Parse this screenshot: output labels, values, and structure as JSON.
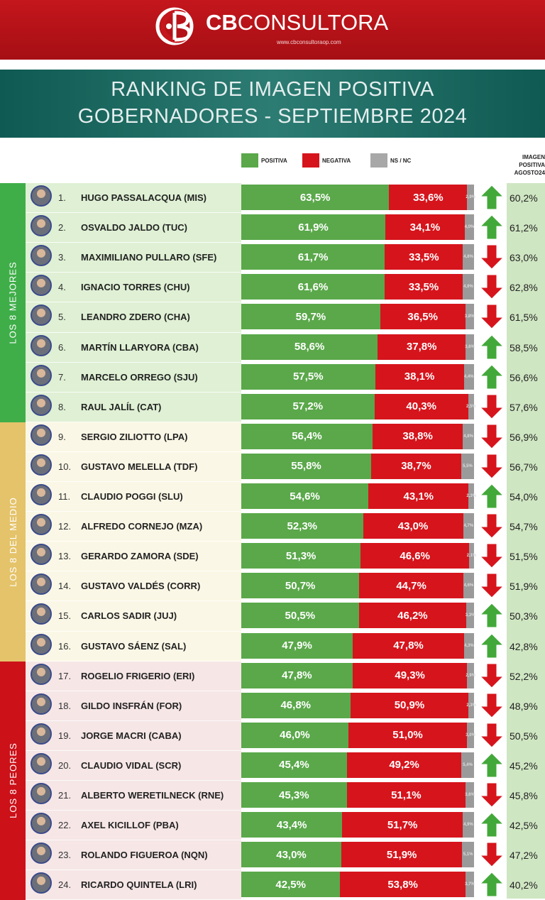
{
  "header": {
    "brand_bold": "CB",
    "brand_rest": "CONSULTORA",
    "url": "www.cbconsultoraop.com"
  },
  "title": {
    "line1": "RANKING DE IMAGEN POSITIVA",
    "line2": "GOBERNADORES - SEPTIEMBRE 2024"
  },
  "colors": {
    "positive": "#5aa84a",
    "negative": "#d6141c",
    "nsnc": "#9a9a9a",
    "up": "#43a83a",
    "down": "#d6141c"
  },
  "legend": {
    "positive": "POSITIVA",
    "negative": "NEGATIVA",
    "nsnc": "NS / NC"
  },
  "previous_header": {
    "l1": "IMAGEN",
    "l2": "POSITIVA",
    "l3": "AGOSTO24"
  },
  "groups": [
    {
      "label": "LOS 8 MEJORES",
      "color": "#3fae49",
      "row_bg": "#dff0d4"
    },
    {
      "label": "LOS 8 DEL MEDIO",
      "color": "#e4c36a",
      "row_bg": "#fbf7e6"
    },
    {
      "label": "LOS 8 PEORES",
      "color": "#cc1119",
      "row_bg": "#f6e6e6"
    }
  ],
  "chart_data": {
    "type": "bar",
    "stacked": true,
    "orientation": "horizontal",
    "title": "RANKING DE IMAGEN POSITIVA GOBERNADORES - SEPTIEMBRE 2024",
    "rows": [
      {
        "rank": "1.",
        "name": "HUGO PASSALACQUA (MIS)",
        "pos": 63.5,
        "pos_label": "63,5%",
        "neg": 33.6,
        "neg_label": "33,6%",
        "ns_label": "2,9%",
        "trend": "up",
        "prev": "60,2%"
      },
      {
        "rank": "2.",
        "name": "OSVALDO JALDO (TUC)",
        "pos": 61.9,
        "pos_label": "61,9%",
        "neg": 34.1,
        "neg_label": "34,1%",
        "ns_label": "4,0%",
        "trend": "up",
        "prev": "61,2%"
      },
      {
        "rank": "3.",
        "name": "MAXIMILIANO PULLARO (SFE)",
        "pos": 61.7,
        "pos_label": "61,7%",
        "neg": 33.5,
        "neg_label": "33,5%",
        "ns_label": "4,8%",
        "trend": "down",
        "prev": "63,0%"
      },
      {
        "rank": "4.",
        "name": "IGNACIO TORRES (CHU)",
        "pos": 61.6,
        "pos_label": "61,6%",
        "neg": 33.5,
        "neg_label": "33,5%",
        "ns_label": "4,9%",
        "trend": "down",
        "prev": "62,8%"
      },
      {
        "rank": "5.",
        "name": "LEANDRO ZDERO (CHA)",
        "pos": 59.7,
        "pos_label": "59,7%",
        "neg": 36.5,
        "neg_label": "36,5%",
        "ns_label": "3,8%",
        "trend": "down",
        "prev": "61,5%"
      },
      {
        "rank": "6.",
        "name": "MARTÍN LLARYORA (CBA)",
        "pos": 58.6,
        "pos_label": "58,6%",
        "neg": 37.8,
        "neg_label": "37,8%",
        "ns_label": "3,6%",
        "trend": "up",
        "prev": "58,5%"
      },
      {
        "rank": "7.",
        "name": "MARCELO ORREGO (SJU)",
        "pos": 57.5,
        "pos_label": "57,5%",
        "neg": 38.1,
        "neg_label": "38,1%",
        "ns_label": "4,4%",
        "trend": "up",
        "prev": "56,6%"
      },
      {
        "rank": "8.",
        "name": "RAUL JALÍL (CAT)",
        "pos": 57.2,
        "pos_label": "57,2%",
        "neg": 40.3,
        "neg_label": "40,3%",
        "ns_label": "2,5%",
        "trend": "down",
        "prev": "57,6%"
      },
      {
        "rank": "9.",
        "name": "SERGIO ZILIOTTO (LPA)",
        "pos": 56.4,
        "pos_label": "56,4%",
        "neg": 38.8,
        "neg_label": "38,8%",
        "ns_label": "4,8%",
        "trend": "down",
        "prev": "56,9%"
      },
      {
        "rank": "10.",
        "name": "GUSTAVO MELELLA (TDF)",
        "pos": 55.8,
        "pos_label": "55,8%",
        "neg": 38.7,
        "neg_label": "38,7%",
        "ns_label": "5,5%",
        "trend": "down",
        "prev": "56,7%"
      },
      {
        "rank": "11.",
        "name": "CLAUDIO POGGI (SLU)",
        "pos": 54.6,
        "pos_label": "54,6%",
        "neg": 43.1,
        "neg_label": "43,1%",
        "ns_label": "2,3%",
        "trend": "up",
        "prev": "54,0%"
      },
      {
        "rank": "12.",
        "name": "ALFREDO CORNEJO (MZA)",
        "pos": 52.3,
        "pos_label": "52,3%",
        "neg": 43.0,
        "neg_label": "43,0%",
        "ns_label": "4,7%",
        "trend": "down",
        "prev": "54,7%"
      },
      {
        "rank": "13.",
        "name": "GERARDO ZAMORA (SDE)",
        "pos": 51.3,
        "pos_label": "51,3%",
        "neg": 46.6,
        "neg_label": "46,6%",
        "ns_label": "2,1%",
        "trend": "down",
        "prev": "51,5%"
      },
      {
        "rank": "14.",
        "name": "GUSTAVO VALDÉS (CORR)",
        "pos": 50.7,
        "pos_label": "50,7%",
        "neg": 44.7,
        "neg_label": "44,7%",
        "ns_label": "4,6%",
        "trend": "down",
        "prev": "51,9%"
      },
      {
        "rank": "15.",
        "name": "CARLOS SADIR (JUJ)",
        "pos": 50.5,
        "pos_label": "50,5%",
        "neg": 46.2,
        "neg_label": "46,2%",
        "ns_label": "3,3%",
        "trend": "up",
        "prev": "50,3%"
      },
      {
        "rank": "16.",
        "name": "GUSTAVO SÁENZ (SAL)",
        "pos": 47.9,
        "pos_label": "47,9%",
        "neg": 47.8,
        "neg_label": "47,8%",
        "ns_label": "4,3%",
        "trend": "up",
        "prev": "42,8%"
      },
      {
        "rank": "17.",
        "name": "ROGELIO FRIGERIO (ERI)",
        "pos": 47.8,
        "pos_label": "47,8%",
        "neg": 49.3,
        "neg_label": "49,3%",
        "ns_label": "2,9%",
        "trend": "down",
        "prev": "52,2%"
      },
      {
        "rank": "18.",
        "name": "GILDO INSFRÁN (FOR)",
        "pos": 46.8,
        "pos_label": "46,8%",
        "neg": 50.9,
        "neg_label": "50,9%",
        "ns_label": "2,3%",
        "trend": "down",
        "prev": "48,9%"
      },
      {
        "rank": "19.",
        "name": "JORGE MACRI (CABA)",
        "pos": 46.0,
        "pos_label": "46,0%",
        "neg": 51.0,
        "neg_label": "51,0%",
        "ns_label": "3,0%",
        "trend": "down",
        "prev": "50,5%"
      },
      {
        "rank": "20.",
        "name": "CLAUDIO VIDAL (SCR)",
        "pos": 45.4,
        "pos_label": "45,4%",
        "neg": 49.2,
        "neg_label": "49,2%",
        "ns_label": "5,4%",
        "trend": "up",
        "prev": "45,2%"
      },
      {
        "rank": "21.",
        "name": "ALBERTO WERETILNECK (RNE)",
        "pos": 45.3,
        "pos_label": "45,3%",
        "neg": 51.1,
        "neg_label": "51,1%",
        "ns_label": "3,6%",
        "trend": "down",
        "prev": "45,8%"
      },
      {
        "rank": "22.",
        "name": "AXEL KICILLOF (PBA)",
        "pos": 43.4,
        "pos_label": "43,4%",
        "neg": 51.7,
        "neg_label": "51,7%",
        "ns_label": "4,9%",
        "trend": "up",
        "prev": "42,5%"
      },
      {
        "rank": "23.",
        "name": "ROLANDO FIGUEROA (NQN)",
        "pos": 43.0,
        "pos_label": "43,0%",
        "neg": 51.9,
        "neg_label": "51,9%",
        "ns_label": "5,1%",
        "trend": "down",
        "prev": "47,2%"
      },
      {
        "rank": "24.",
        "name": "RICARDO QUINTELA (LRI)",
        "pos": 42.5,
        "pos_label": "42,5%",
        "neg": 53.8,
        "neg_label": "53,8%",
        "ns_label": "3,7%",
        "trend": "up",
        "prev": "40,2%"
      }
    ]
  }
}
